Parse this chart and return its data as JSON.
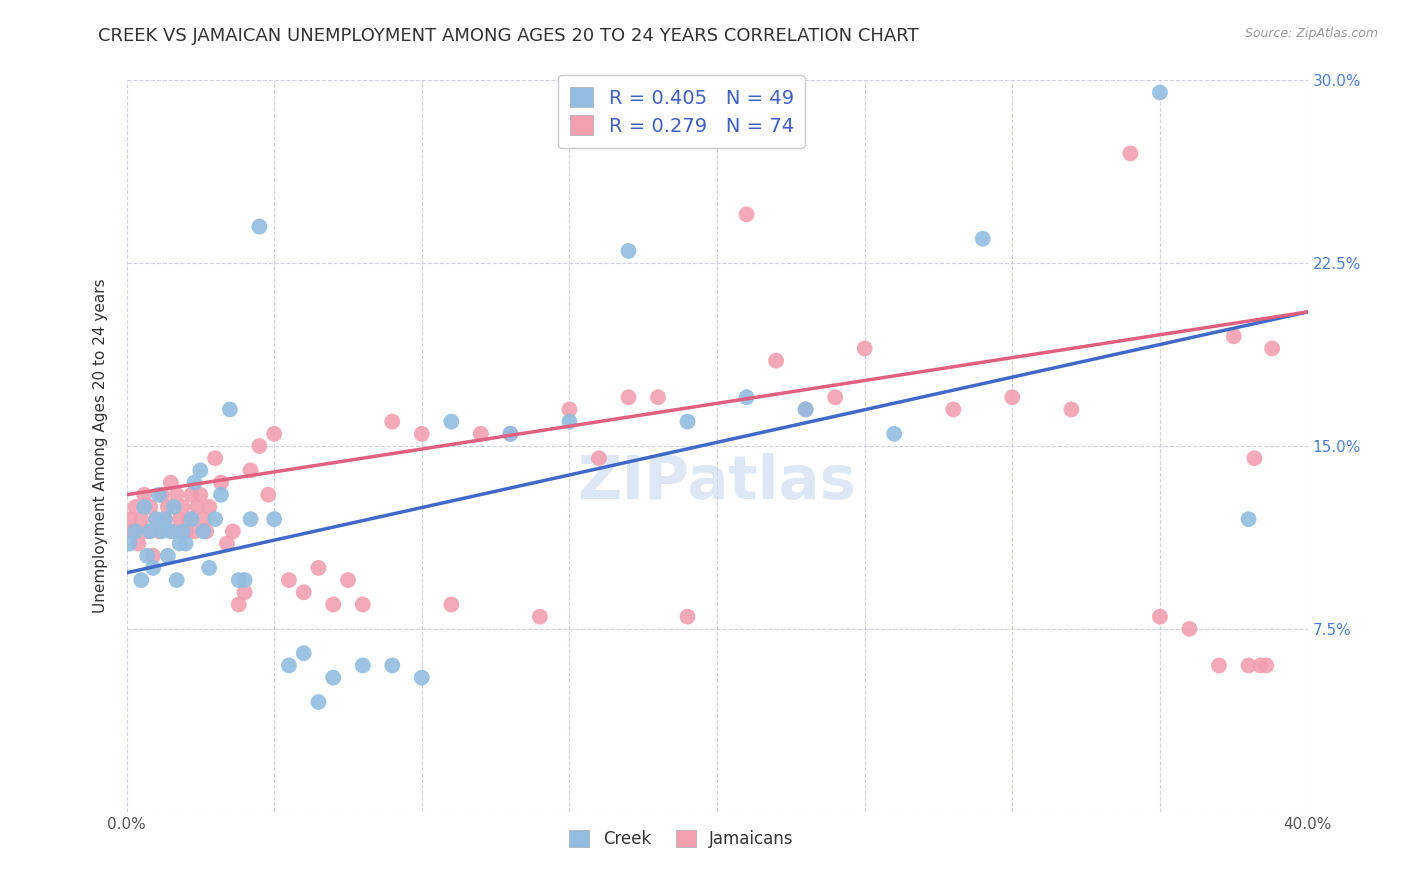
{
  "title": "CREEK VS JAMAICAN UNEMPLOYMENT AMONG AGES 20 TO 24 YEARS CORRELATION CHART",
  "source": "Source: ZipAtlas.com",
  "ylabel": "Unemployment Among Ages 20 to 24 years",
  "xlim": [
    0.0,
    0.4
  ],
  "ylim": [
    0.0,
    0.3
  ],
  "xticks": [
    0.0,
    0.05,
    0.1,
    0.15,
    0.2,
    0.25,
    0.3,
    0.35,
    0.4
  ],
  "yticks": [
    0.0,
    0.075,
    0.15,
    0.225,
    0.3
  ],
  "yticklabels_right": [
    "",
    "7.5%",
    "15.0%",
    "22.5%",
    "30.0%"
  ],
  "xticklabel_left": "0.0%",
  "xticklabel_right": "40.0%",
  "creek_R": 0.405,
  "creek_N": 49,
  "jamaican_R": 0.279,
  "jamaican_N": 74,
  "creek_color": "#92BDE0",
  "jamaican_color": "#F2A0B0",
  "creek_line_color": "#4169C8",
  "jamaican_line_color": "#E06080",
  "creek_x": [
    0.001,
    0.003,
    0.005,
    0.006,
    0.007,
    0.008,
    0.009,
    0.01,
    0.011,
    0.012,
    0.013,
    0.014,
    0.015,
    0.016,
    0.017,
    0.018,
    0.019,
    0.02,
    0.022,
    0.023,
    0.025,
    0.026,
    0.028,
    0.03,
    0.032,
    0.035,
    0.038,
    0.04,
    0.042,
    0.045,
    0.05,
    0.055,
    0.06,
    0.065,
    0.07,
    0.08,
    0.09,
    0.1,
    0.11,
    0.13,
    0.15,
    0.17,
    0.19,
    0.21,
    0.23,
    0.26,
    0.29,
    0.35,
    0.38
  ],
  "creek_y": [
    0.11,
    0.115,
    0.095,
    0.125,
    0.105,
    0.115,
    0.1,
    0.12,
    0.13,
    0.115,
    0.12,
    0.105,
    0.115,
    0.125,
    0.095,
    0.11,
    0.115,
    0.11,
    0.12,
    0.135,
    0.14,
    0.115,
    0.1,
    0.12,
    0.13,
    0.165,
    0.095,
    0.095,
    0.12,
    0.24,
    0.12,
    0.06,
    0.065,
    0.045,
    0.055,
    0.06,
    0.06,
    0.055,
    0.16,
    0.155,
    0.16,
    0.23,
    0.16,
    0.17,
    0.165,
    0.155,
    0.235,
    0.295,
    0.12
  ],
  "jamaican_x": [
    0.001,
    0.002,
    0.003,
    0.004,
    0.005,
    0.006,
    0.007,
    0.008,
    0.009,
    0.01,
    0.011,
    0.012,
    0.013,
    0.014,
    0.015,
    0.016,
    0.017,
    0.018,
    0.019,
    0.02,
    0.021,
    0.022,
    0.023,
    0.024,
    0.025,
    0.026,
    0.027,
    0.028,
    0.03,
    0.032,
    0.034,
    0.036,
    0.038,
    0.04,
    0.042,
    0.045,
    0.048,
    0.05,
    0.055,
    0.06,
    0.065,
    0.07,
    0.075,
    0.08,
    0.09,
    0.1,
    0.11,
    0.12,
    0.13,
    0.14,
    0.15,
    0.16,
    0.17,
    0.18,
    0.19,
    0.2,
    0.21,
    0.22,
    0.23,
    0.24,
    0.25,
    0.28,
    0.3,
    0.32,
    0.34,
    0.35,
    0.36,
    0.37,
    0.375,
    0.38,
    0.382,
    0.384,
    0.386,
    0.388
  ],
  "jamaican_y": [
    0.12,
    0.115,
    0.125,
    0.11,
    0.12,
    0.13,
    0.115,
    0.125,
    0.105,
    0.12,
    0.115,
    0.13,
    0.12,
    0.125,
    0.135,
    0.115,
    0.13,
    0.12,
    0.125,
    0.115,
    0.12,
    0.13,
    0.115,
    0.125,
    0.13,
    0.12,
    0.115,
    0.125,
    0.145,
    0.135,
    0.11,
    0.115,
    0.085,
    0.09,
    0.14,
    0.15,
    0.13,
    0.155,
    0.095,
    0.09,
    0.1,
    0.085,
    0.095,
    0.085,
    0.16,
    0.155,
    0.085,
    0.155,
    0.155,
    0.08,
    0.165,
    0.145,
    0.17,
    0.17,
    0.08,
    0.275,
    0.245,
    0.185,
    0.165,
    0.17,
    0.19,
    0.165,
    0.17,
    0.165,
    0.27,
    0.08,
    0.075,
    0.06,
    0.195,
    0.06,
    0.145,
    0.06,
    0.06,
    0.19
  ],
  "creek_line": {
    "x0": 0.0,
    "x1": 0.4,
    "y0": 0.098,
    "y1": 0.205
  },
  "jamaican_line": {
    "x0": 0.0,
    "x1": 0.4,
    "y0": 0.13,
    "y1": 0.205
  },
  "watermark": "ZIPatlas",
  "background_color": "#ffffff",
  "grid_color": "#d0d0e0",
  "title_fontsize": 13,
  "axis_label_fontsize": 11,
  "tick_fontsize": 11,
  "legend_fontsize": 14
}
